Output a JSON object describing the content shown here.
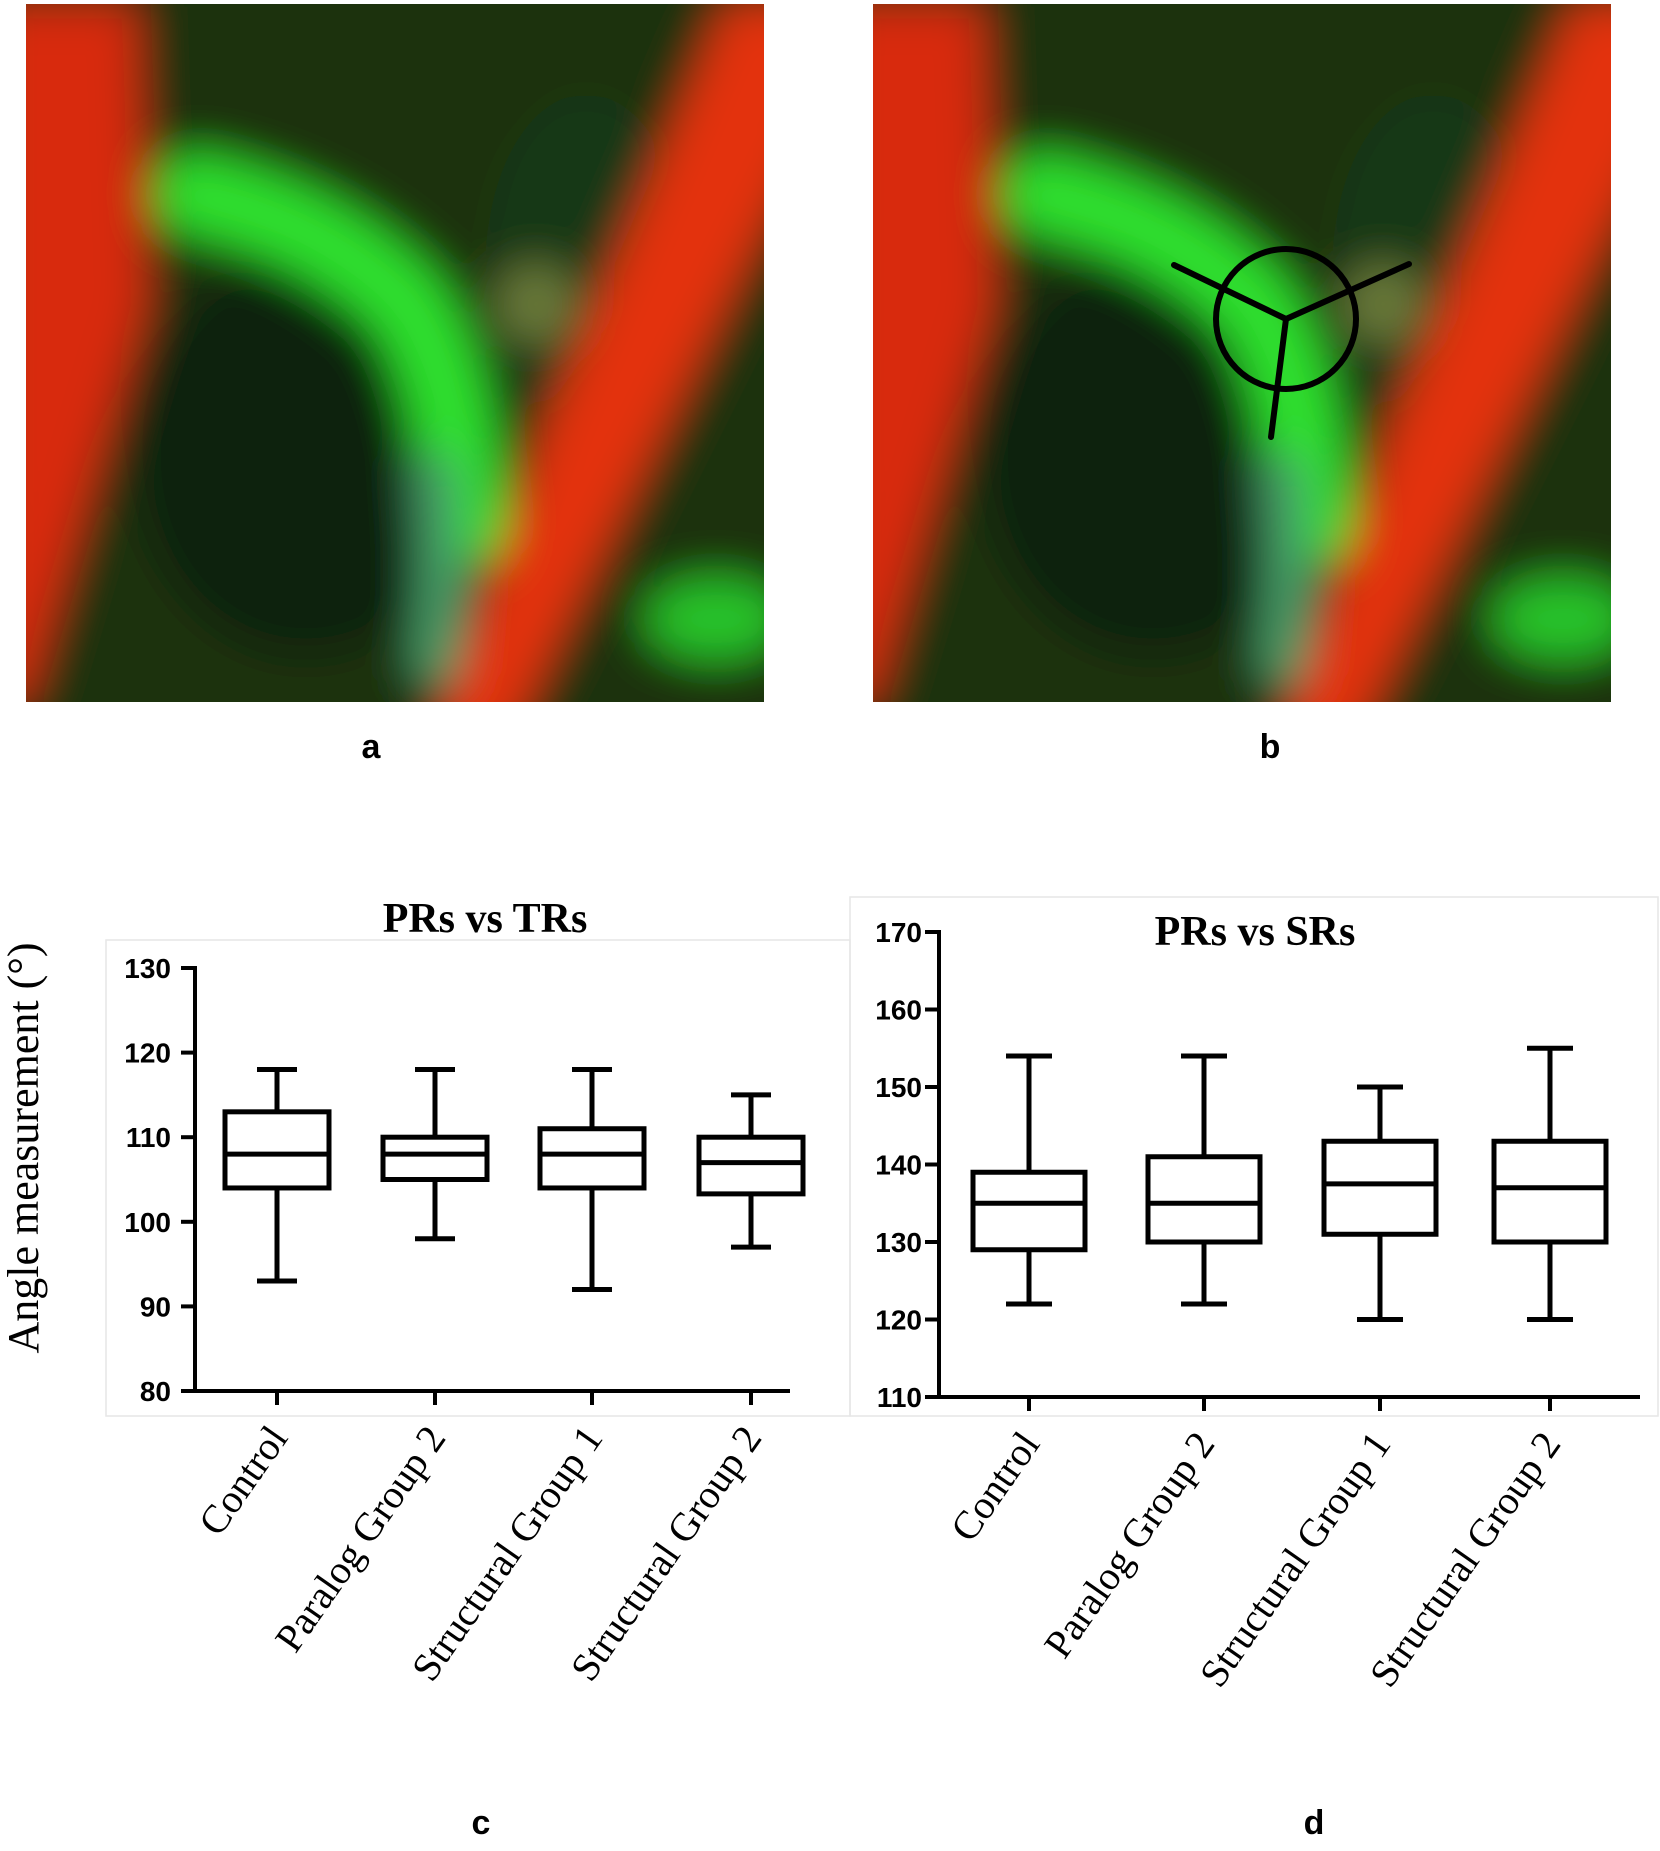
{
  "panels": {
    "a": {
      "label": "a"
    },
    "b": {
      "label": "b"
    },
    "c": {
      "label": "c"
    },
    "d": {
      "label": "d"
    }
  },
  "colors": {
    "green_channel": "#2bdc2b",
    "red_channel": "#e02a0c",
    "background": "#0c2a08",
    "annotation": "#000000"
  },
  "ylabel_shared": "Angle measurement (°)",
  "chart_data": [
    {
      "type": "box",
      "title": "PRs vs TRs",
      "ylabel": "Angle measurement (°)",
      "categories": [
        "Control",
        "Paralog Group 2",
        "Structural Group 1",
        "Structural Group 2"
      ],
      "ylim": [
        80,
        130
      ],
      "yticks": [
        80,
        90,
        100,
        110,
        120,
        130
      ],
      "boxes": [
        {
          "min": 93,
          "q1": 104,
          "median": 108,
          "q3": 113,
          "max": 118
        },
        {
          "min": 98,
          "q1": 105,
          "median": 108,
          "q3": 110,
          "max": 118
        },
        {
          "min": 92,
          "q1": 104,
          "median": 108,
          "q3": 111,
          "max": 118
        },
        {
          "min": 97,
          "q1": 103.3,
          "median": 107,
          "q3": 110,
          "max": 115
        }
      ]
    },
    {
      "type": "box",
      "title": "PRs vs SRs",
      "ylabel": "",
      "categories": [
        "Control",
        "Paralog Group 2",
        "Structural Group 1",
        "Structural Group 2"
      ],
      "ylim": [
        110,
        170
      ],
      "yticks": [
        110,
        120,
        130,
        140,
        150,
        160,
        170
      ],
      "boxes": [
        {
          "min": 122,
          "q1": 129,
          "median": 135,
          "q3": 139,
          "max": 154
        },
        {
          "min": 122,
          "q1": 130,
          "median": 135,
          "q3": 141,
          "max": 154
        },
        {
          "min": 120,
          "q1": 131,
          "median": 137.5,
          "q3": 143,
          "max": 150
        },
        {
          "min": 120,
          "q1": 130,
          "median": 137,
          "q3": 143,
          "max": 155
        }
      ]
    }
  ]
}
